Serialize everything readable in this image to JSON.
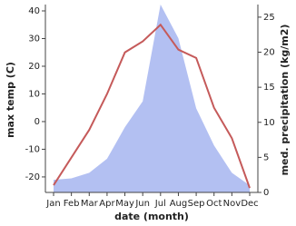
{
  "chart_data": {
    "type": "line",
    "categories": [
      "Jan",
      "Feb",
      "Mar",
      "Apr",
      "May",
      "Jun",
      "Jul",
      "Aug",
      "Sep",
      "Oct",
      "Nov",
      "Dec"
    ],
    "x_label": "date (month)",
    "y_label": "max temp (C)",
    "y2_label": "med. precipitation (kg/m2)",
    "ylim": [
      -25.6,
      42.3
    ],
    "yticks": [
      -20,
      -10,
      0,
      10,
      20,
      30,
      40
    ],
    "y2lim": [
      0,
      26.8
    ],
    "y2ticks": [
      0,
      5,
      10,
      15,
      20,
      25
    ],
    "series": [
      {
        "name": "med. precipitation",
        "type": "area",
        "axis": "y2",
        "color": "#b3c0f2",
        "values": [
          1.8,
          2,
          2.8,
          4.8,
          9.3,
          13,
          26.8,
          22,
          12,
          6.7,
          2.8,
          1
        ]
      },
      {
        "name": "max temp",
        "type": "line",
        "color": "#c55a5a",
        "values": [
          -23,
          -13,
          -3,
          10,
          25,
          29,
          35,
          26,
          23,
          5,
          -6,
          -24
        ]
      }
    ]
  }
}
